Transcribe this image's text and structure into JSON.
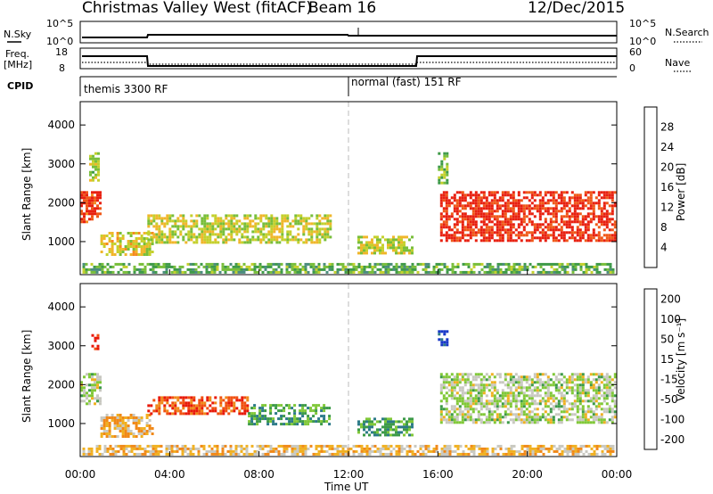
{
  "header": {
    "station": "Christmas Valley West (fitACF)",
    "beam": "Beam 16",
    "date": "12/Dec/2015"
  },
  "top_panels": {
    "nsky_label": "N.Sky",
    "nsky_ticks": [
      "10^5",
      "10^0"
    ],
    "nsearch_label": "N.Search",
    "nsearch_ticks": [
      "10^5",
      "10^0"
    ],
    "freq_label": "Freq.",
    "freq_unit": "[MHz]",
    "freq_ticks": [
      "18",
      "8"
    ],
    "nave_label": "Nave",
    "nave_ticks": [
      "60",
      "0"
    ],
    "cpid_label": "CPID",
    "cpid_mode1": "themis 3300 RF",
    "cpid_mode2": "normal (fast) 151 RF"
  },
  "chart_data": [
    {
      "type": "heatmap",
      "name": "power",
      "ylabel": "Slant Range [km]",
      "ylim": [
        150,
        4600
      ],
      "yticks": [
        1000,
        2000,
        3000,
        4000
      ],
      "xlim": [
        0,
        24
      ],
      "colorbar": {
        "label": "Power [dB]",
        "ticks": [
          "4",
          "8",
          "12",
          "16",
          "20",
          "24",
          "28"
        ],
        "colors": [
          "#1838d8",
          "#2c6ca8",
          "#4a8c7e",
          "#3e9a48",
          "#78be3a",
          "#c4d02c",
          "#f0b62a",
          "#f58a1e",
          "#f05818",
          "#e82010"
        ]
      },
      "regions": [
        {
          "x": [
            0.0,
            0.9
          ],
          "y": [
            1500,
            2300
          ],
          "level": 0.92
        },
        {
          "x": [
            0.4,
            0.8
          ],
          "y": [
            2600,
            3300
          ],
          "level": 0.5
        },
        {
          "x": [
            0.9,
            3.2
          ],
          "y": [
            650,
            1250
          ],
          "level": 0.6
        },
        {
          "x": [
            3.0,
            11.2
          ],
          "y": [
            950,
            1700
          ],
          "level": 0.55
        },
        {
          "x": [
            12.4,
            14.8
          ],
          "y": [
            700,
            1150
          ],
          "level": 0.55
        },
        {
          "x": [
            16.1,
            23.9
          ],
          "y": [
            1000,
            2300
          ],
          "level": 0.95
        },
        {
          "x": [
            16.0,
            16.4
          ],
          "y": [
            2500,
            3300
          ],
          "level": 0.45
        },
        {
          "x": [
            0.1,
            23.9
          ],
          "y": [
            200,
            450
          ],
          "level": 0.4
        }
      ]
    },
    {
      "type": "heatmap",
      "name": "velocity",
      "ylabel": "Slant Range [km]",
      "ylim": [
        150,
        4600
      ],
      "yticks": [
        1000,
        2000,
        3000,
        4000
      ],
      "xlim": [
        0,
        24
      ],
      "xticks": [
        "00:00",
        "04:00",
        "08:00",
        "12:00",
        "16:00",
        "20:00",
        "00:00"
      ],
      "xlabel": "Time UT",
      "colorbar": {
        "label": "Velocity [m s⁻¹]",
        "ticks": [
          "200",
          "100",
          "50",
          "15",
          "-15",
          "-50",
          "-100",
          "-200"
        ],
        "colors": [
          "#1838c8",
          "#2c7a88",
          "#3c9a48",
          "#80c838",
          "#c8c8c0",
          "#f0b020",
          "#f08818",
          "#f05010",
          "#e81808"
        ]
      },
      "regions": [
        {
          "x": [
            0.0,
            0.9
          ],
          "y": [
            1500,
            2300
          ],
          "level": 0.45
        },
        {
          "x": [
            0.5,
            0.8
          ],
          "y": [
            2900,
            3300
          ],
          "level": 0.97
        },
        {
          "x": [
            0.9,
            3.2
          ],
          "y": [
            650,
            1250
          ],
          "level": 0.62
        },
        {
          "x": [
            3.0,
            7.5
          ],
          "y": [
            1250,
            1700
          ],
          "level": 0.85
        },
        {
          "x": [
            7.5,
            11.2
          ],
          "y": [
            950,
            1500
          ],
          "level": 0.3
        },
        {
          "x": [
            12.4,
            14.8
          ],
          "y": [
            700,
            1150
          ],
          "level": 0.28
        },
        {
          "x": [
            16.0,
            16.4
          ],
          "y": [
            3000,
            3400
          ],
          "level": 0.02
        },
        {
          "x": [
            16.1,
            23.9
          ],
          "y": [
            1000,
            2300
          ],
          "level": 0.45
        },
        {
          "x": [
            0.1,
            23.9
          ],
          "y": [
            200,
            450
          ],
          "level": 0.6
        }
      ]
    }
  ]
}
